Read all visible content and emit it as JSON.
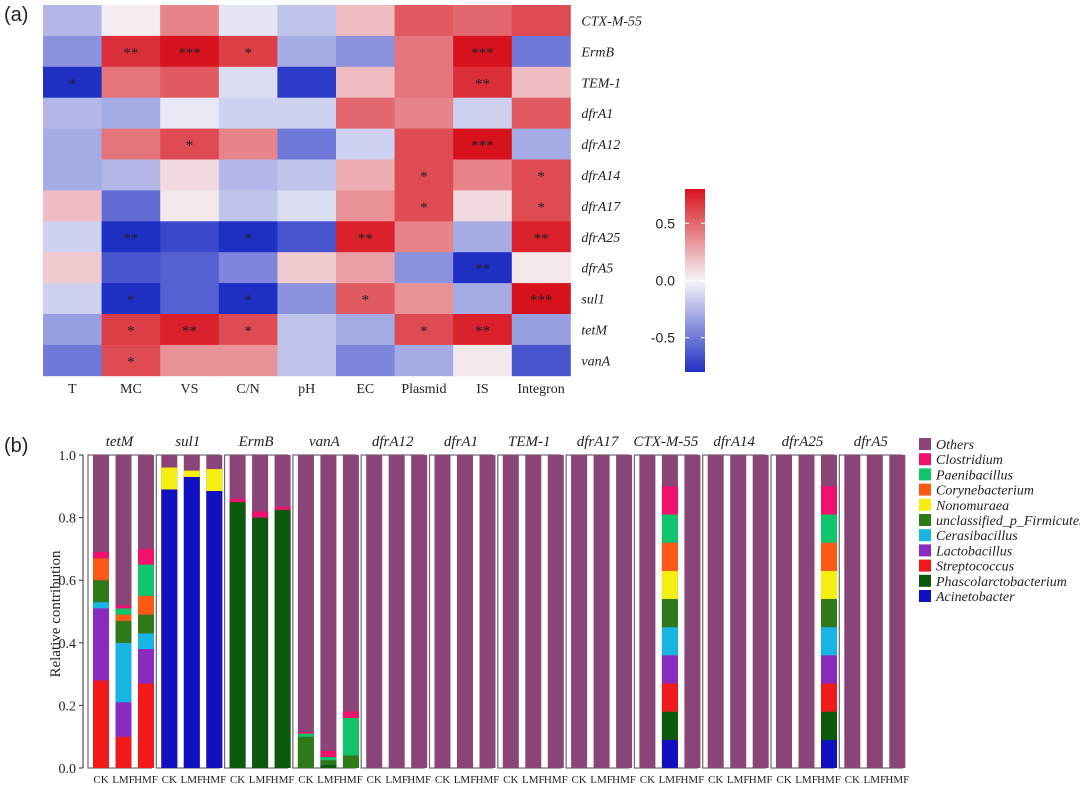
{
  "chart_data": [
    {
      "type": "heatmap",
      "panel_label": "(a)",
      "columns": [
        "T",
        "MC",
        "VS",
        "C/N",
        "pH",
        "EC",
        "Plasmid",
        "IS",
        "Integron"
      ],
      "rows": [
        "CTX-M-55",
        "ErmB",
        "TEM-1",
        "dfrA1",
        "dfrA12",
        "dfrA14",
        "dfrA17",
        "dfrA25",
        "dfrA5",
        "sul1",
        "tetM",
        "vanA"
      ],
      "values": [
        [
          -0.25,
          0.03,
          0.4,
          -0.06,
          -0.2,
          0.2,
          0.55,
          0.5,
          0.6
        ],
        [
          -0.4,
          0.7,
          0.85,
          0.65,
          -0.3,
          -0.4,
          0.45,
          0.85,
          -0.5
        ],
        [
          -0.85,
          0.45,
          0.55,
          -0.1,
          -0.75,
          0.2,
          0.45,
          0.7,
          0.2
        ],
        [
          -0.25,
          -0.3,
          -0.05,
          -0.15,
          -0.15,
          0.5,
          0.4,
          -0.15,
          0.55
        ],
        [
          -0.3,
          0.45,
          0.6,
          0.4,
          -0.5,
          -0.15,
          0.6,
          0.88,
          -0.3
        ],
        [
          -0.3,
          -0.25,
          0.1,
          -0.25,
          -0.2,
          0.25,
          0.6,
          0.4,
          0.6
        ],
        [
          0.2,
          -0.55,
          0.05,
          -0.2,
          -0.1,
          0.35,
          0.6,
          0.1,
          0.6
        ],
        [
          -0.15,
          -0.85,
          -0.7,
          -0.8,
          -0.65,
          0.75,
          0.4,
          -0.3,
          0.75
        ],
        [
          0.15,
          -0.65,
          -0.6,
          -0.45,
          0.15,
          0.3,
          -0.4,
          -0.85,
          0.05
        ],
        [
          -0.15,
          -0.8,
          -0.6,
          -0.8,
          -0.4,
          0.55,
          0.35,
          -0.3,
          0.9
        ],
        [
          -0.35,
          0.65,
          0.75,
          0.6,
          -0.2,
          -0.3,
          0.6,
          0.75,
          -0.35
        ],
        [
          -0.5,
          0.6,
          0.35,
          0.35,
          -0.2,
          -0.45,
          -0.3,
          0.05,
          -0.65
        ]
      ],
      "significance": [
        [
          "",
          "",
          "",
          "",
          "",
          "",
          "",
          "",
          ""
        ],
        [
          "",
          "**",
          "***",
          "*",
          "",
          "",
          "",
          "***",
          ""
        ],
        [
          "*",
          "",
          "",
          "",
          "",
          "",
          "",
          "**",
          ""
        ],
        [
          "",
          "",
          "",
          "",
          "",
          "",
          "",
          "",
          ""
        ],
        [
          "",
          "",
          "*",
          "",
          "",
          "",
          "",
          "***",
          ""
        ],
        [
          "",
          "",
          "",
          "",
          "",
          "",
          "*",
          "",
          "*"
        ],
        [
          "",
          "",
          "",
          "",
          "",
          "",
          "*",
          "",
          "*"
        ],
        [
          "",
          "**",
          "",
          "*",
          "",
          "**",
          "",
          "",
          "**"
        ],
        [
          "",
          "",
          "",
          "",
          "",
          "",
          "",
          "**",
          ""
        ],
        [
          "",
          "*",
          "",
          "*",
          "",
          "*",
          "",
          "",
          "***"
        ],
        [
          "",
          "*",
          "**",
          "*",
          "",
          "",
          "*",
          "**",
          ""
        ],
        [
          "",
          "*",
          "",
          "",
          "",
          "",
          "",
          "",
          ""
        ]
      ],
      "colorbar": {
        "range": [
          -0.8,
          0.8
        ],
        "ticks": [
          0.5,
          0.0,
          -0.5
        ],
        "tick_labels": [
          "0.5",
          "0.0",
          "-0.5"
        ],
        "low_color": "#1f2fc4",
        "mid_color": "#f5f5f8",
        "high_color": "#d8121c"
      }
    },
    {
      "type": "bar",
      "stacked": true,
      "panel_label": "(b)",
      "ylabel": "Relative contribution",
      "ylim": [
        0,
        1.0
      ],
      "yticks": [
        "0.0",
        "0.2",
        "0.4",
        "0.6",
        "0.8",
        "1.0"
      ],
      "groups": [
        "CK",
        "LMF",
        "HMF"
      ],
      "legend_title": "",
      "legend": [
        {
          "name": "Others",
          "color": "#8a4478"
        },
        {
          "name": "Clostridium",
          "color": "#f0116c"
        },
        {
          "name": "Paenibacillus",
          "color": "#10c46b"
        },
        {
          "name": "Corynebacterium",
          "color": "#fa5a16"
        },
        {
          "name": "Nonomuraea",
          "color": "#f6ee12"
        },
        {
          "name": "unclassified_p_Firmicutes",
          "color": "#2e7a1a"
        },
        {
          "name": "Cerasibacillus",
          "color": "#18b4e4"
        },
        {
          "name": "Lactobacillus",
          "color": "#8a2bc0"
        },
        {
          "name": "Streptococcus",
          "color": "#f01a1a"
        },
        {
          "name": "Phascolarctobacterium",
          "color": "#0b5a0b"
        },
        {
          "name": "Acinetobacter",
          "color": "#1010c0"
        }
      ],
      "panels": [
        {
          "gene": "tetM",
          "bars": [
            {
              "Streptococcus": 0.28,
              "Lactobacillus": 0.23,
              "Cerasibacillus": 0.02,
              "unclassified_p_Firmicutes": 0.07,
              "Corynebacterium": 0.07,
              "Clostridium": 0.02
            },
            {
              "Streptococcus": 0.1,
              "Lactobacillus": 0.11,
              "Cerasibacillus": 0.19,
              "unclassified_p_Firmicutes": 0.07,
              "Corynebacterium": 0.02,
              "Paenibacillus": 0.02,
              "Clostridium": 0.01
            },
            {
              "Streptococcus": 0.27,
              "Lactobacillus": 0.11,
              "Cerasibacillus": 0.05,
              "unclassified_p_Firmicutes": 0.06,
              "Corynebacterium": 0.06,
              "Paenibacillus": 0.1,
              "Clostridium": 0.05
            }
          ]
        },
        {
          "gene": "sul1",
          "bars": [
            {
              "Acinetobacter": 0.89,
              "Nonomuraea": 0.07
            },
            {
              "Acinetobacter": 0.93,
              "Nonomuraea": 0.02
            },
            {
              "Acinetobacter": 0.885,
              "Nonomuraea": 0.07
            }
          ]
        },
        {
          "gene": "ErmB",
          "bars": [
            {
              "Phascolarctobacterium": 0.85,
              "Clostridium": 0.01
            },
            {
              "Phascolarctobacterium": 0.8,
              "Clostridium": 0.02
            },
            {
              "Phascolarctobacterium": 0.825,
              "Clostridium": 0.01
            }
          ]
        },
        {
          "gene": "vanA",
          "bars": [
            {
              "unclassified_p_Firmicutes": 0.1,
              "Paenibacillus": 0.01,
              "Clostridium": 0.005
            },
            {
              "Phascolarctobacterium": 0.01,
              "unclassified_p_Firmicutes": 0.015,
              "Paenibacillus": 0.01,
              "Clostridium": 0.02
            },
            {
              "unclassified_p_Firmicutes": 0.04,
              "Paenibacillus": 0.12,
              "Clostridium": 0.02
            }
          ]
        },
        {
          "gene": "dfrA12",
          "bars": [
            {},
            {},
            {}
          ]
        },
        {
          "gene": "dfrA1",
          "bars": [
            {},
            {},
            {}
          ]
        },
        {
          "gene": "TEM-1",
          "bars": [
            {},
            {},
            {}
          ]
        },
        {
          "gene": "dfrA17",
          "bars": [
            {},
            {},
            {}
          ]
        },
        {
          "gene": "CTX-M-55",
          "bars": [
            {},
            {
              "Acinetobacter": 0.09,
              "Phascolarctobacterium": 0.09,
              "Streptococcus": 0.09,
              "Lactobacillus": 0.09,
              "Cerasibacillus": 0.09,
              "unclassified_p_Firmicutes": 0.09,
              "Nonomuraea": 0.09,
              "Corynebacterium": 0.09,
              "Paenibacillus": 0.09,
              "Clostridium": 0.09
            },
            {}
          ]
        },
        {
          "gene": "dfrA14",
          "bars": [
            {},
            {},
            {}
          ]
        },
        {
          "gene": "dfrA25",
          "bars": [
            {},
            {},
            {
              "Acinetobacter": 0.09,
              "Phascolarctobacterium": 0.09,
              "Streptococcus": 0.09,
              "Lactobacillus": 0.09,
              "Cerasibacillus": 0.09,
              "unclassified_p_Firmicutes": 0.09,
              "Nonomuraea": 0.09,
              "Corynebacterium": 0.09,
              "Paenibacillus": 0.09,
              "Clostridium": 0.09
            }
          ]
        },
        {
          "gene": "dfrA5",
          "bars": [
            {},
            {},
            {}
          ]
        }
      ]
    }
  ]
}
